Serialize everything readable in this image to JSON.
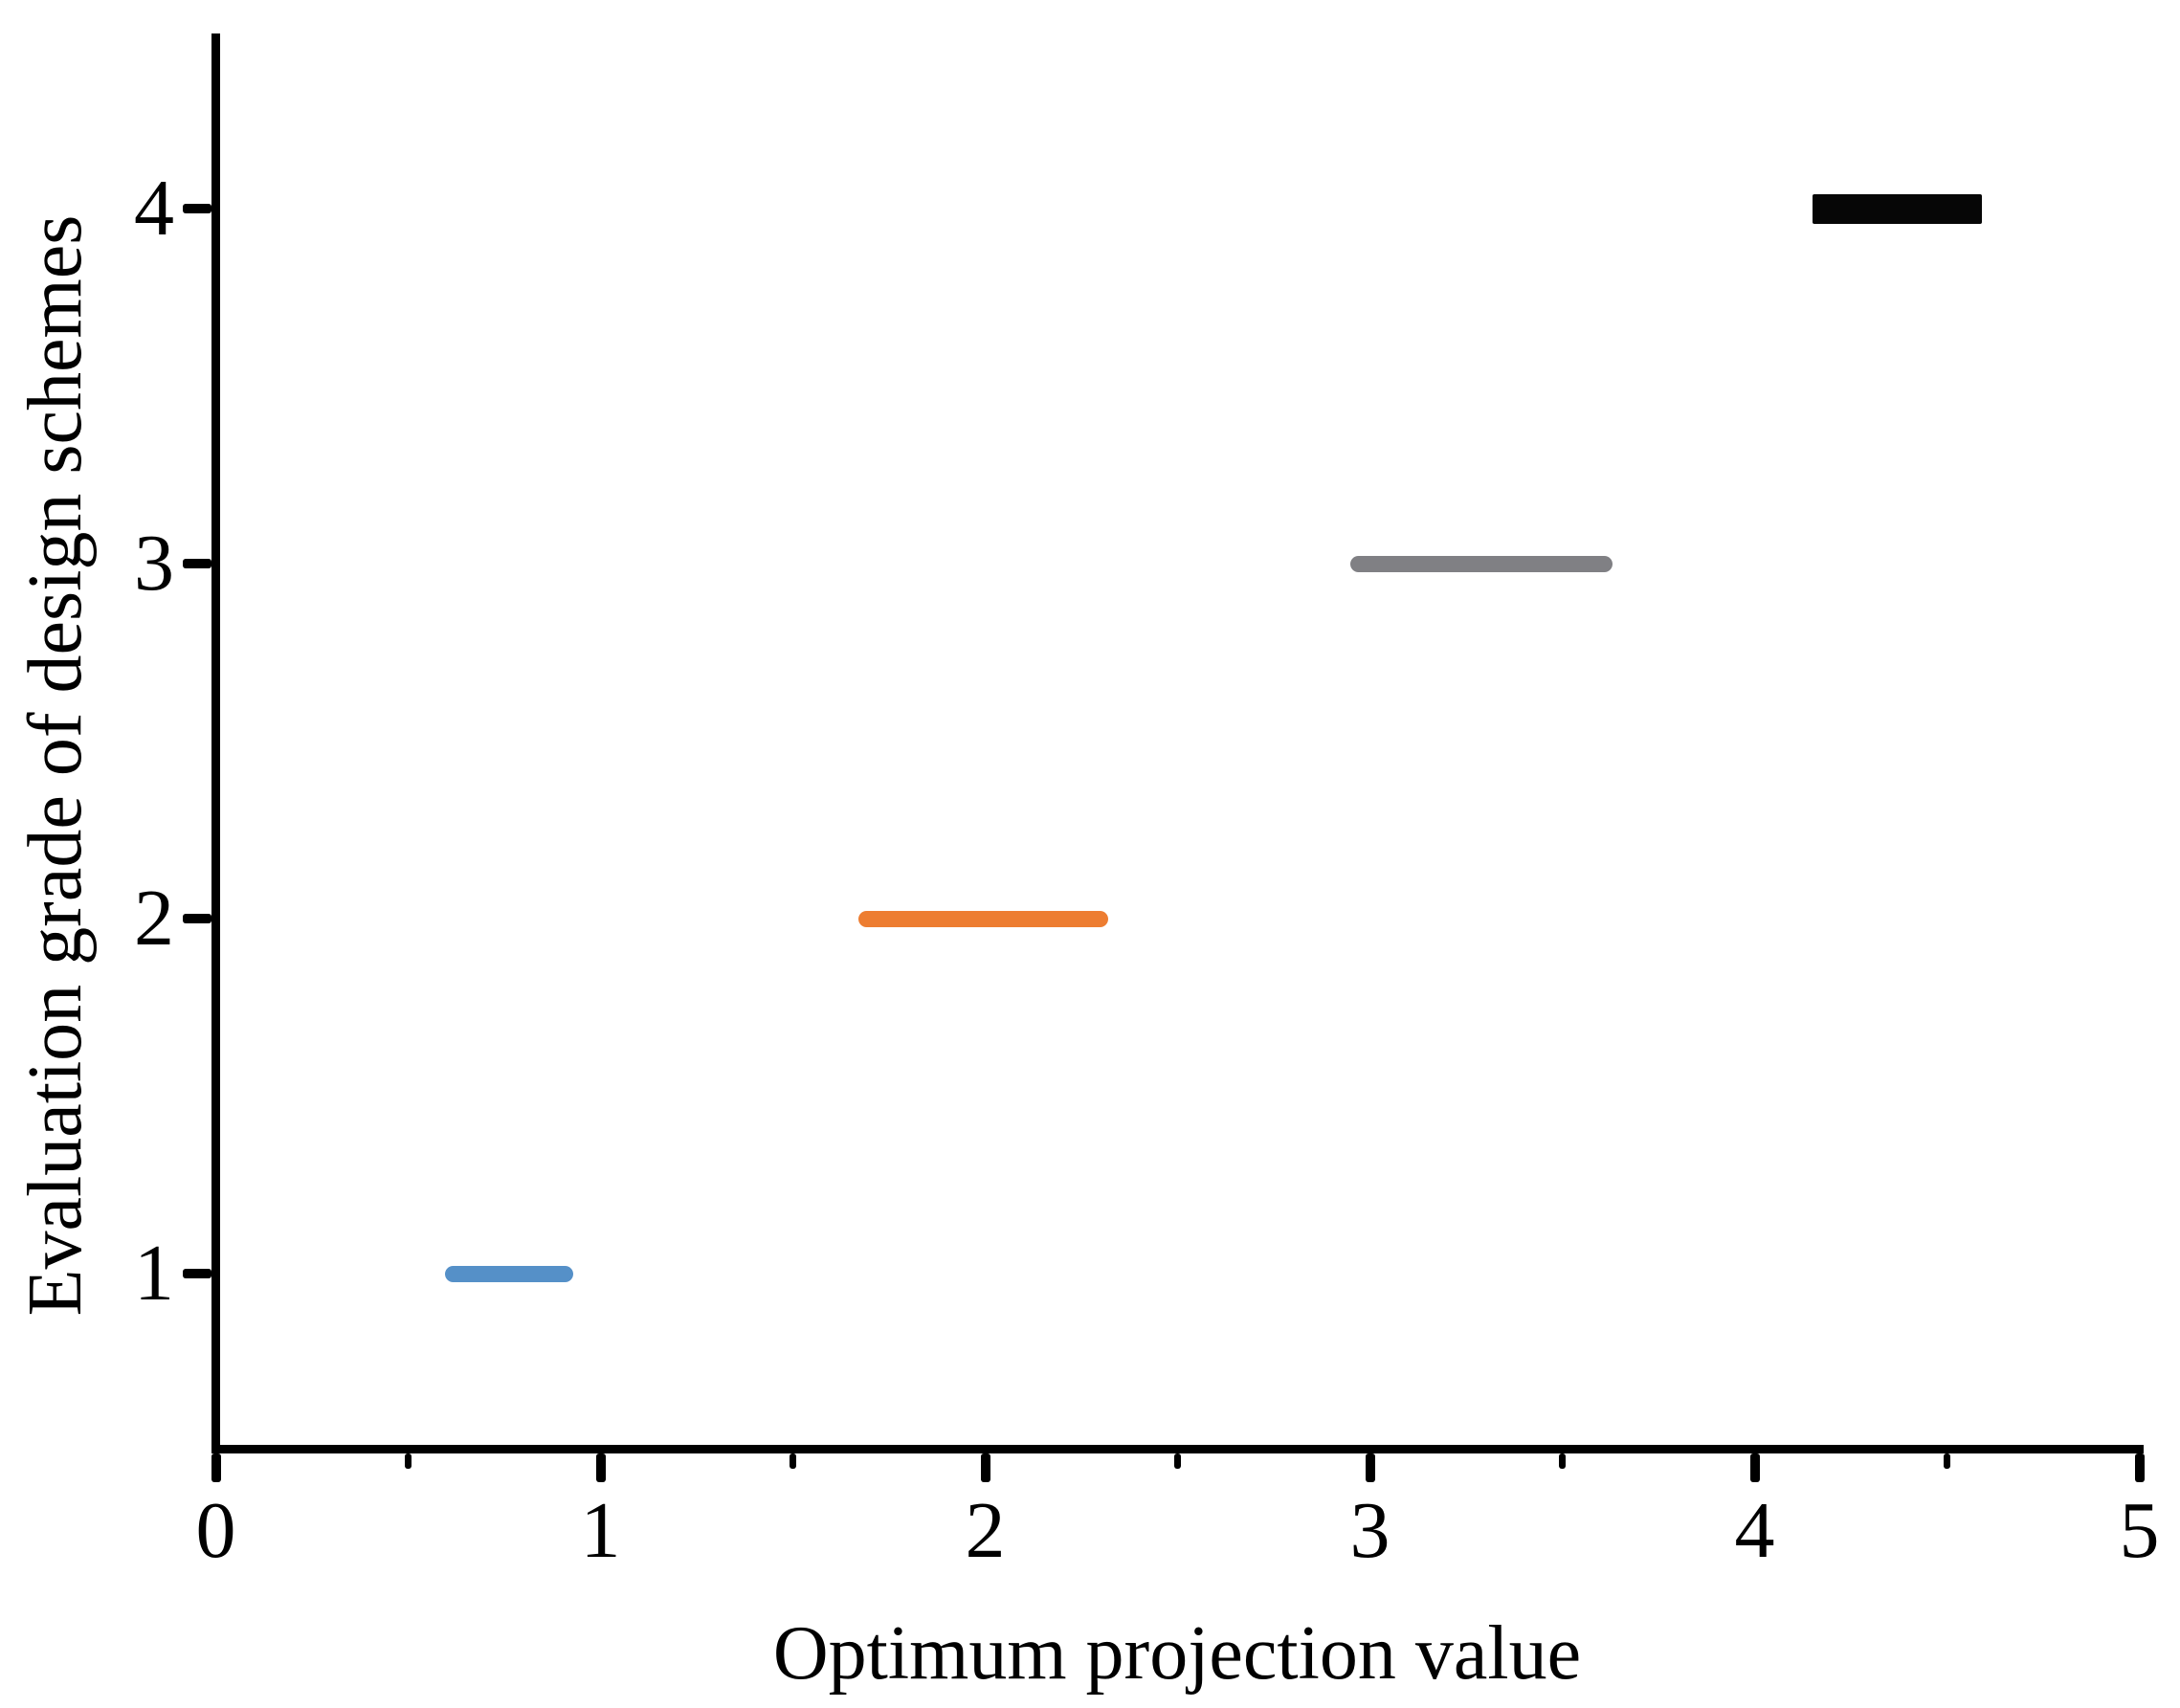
{
  "chart_data": {
    "type": "scatter",
    "title": "",
    "xlabel": "Optimum projection value",
    "ylabel": "Evaluation grade of design schemes",
    "xlim": [
      0,
      5
    ],
    "ylim": [
      0.5,
      4.5
    ],
    "x_major_ticks": [
      0,
      1,
      2,
      3,
      4,
      5
    ],
    "x_tick_labels": [
      "0",
      "1",
      "2",
      "3",
      "4",
      "5"
    ],
    "x_minor_ticks": [
      0.5,
      1.5,
      2.5,
      3.5,
      4.5
    ],
    "y_major_ticks": [
      1,
      2,
      3,
      4
    ],
    "y_tick_labels": [
      "1",
      "2",
      "3",
      "4"
    ],
    "grid": false,
    "legend": false,
    "background_color": "#FFFFFF",
    "axis_color": "#000000",
    "series": [
      {
        "grade": 1,
        "y": 1,
        "x_start": 0.595,
        "x_end": 0.93,
        "color": "#5590C8",
        "marker": "circle",
        "band_thickness_px": 17
      },
      {
        "grade": 2,
        "y": 2,
        "x_start": 1.67,
        "x_end": 2.32,
        "color": "#ED7D31",
        "marker": "circle",
        "band_thickness_px": 17
      },
      {
        "grade": 3,
        "y": 3,
        "x_start": 2.95,
        "x_end": 3.63,
        "color": "#808084",
        "marker": "circle",
        "band_thickness_px": 17
      },
      {
        "grade": 4,
        "y": 4,
        "x_start": 4.15,
        "x_end": 4.59,
        "color": "#060606",
        "marker": "square",
        "band_thickness_px": 31
      }
    ]
  }
}
